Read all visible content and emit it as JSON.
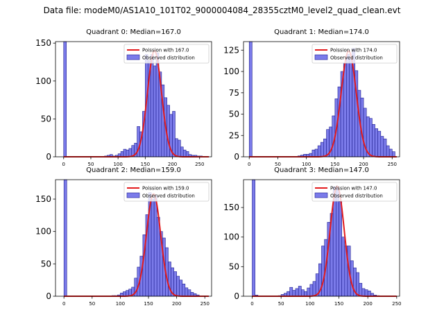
{
  "suptitle": "Data file: modeM0/AS1A10_101T02_9000004084_28355cztM0_level2_quad_clean.evt",
  "colors": {
    "bar_fill": "#7b7bea",
    "bar_edge": "#1f1f8f",
    "curve": "#e31a1c"
  },
  "chart_data": [
    {
      "type": "bar",
      "title": "Quadrant 0: Median=167.0",
      "xlim": [
        -15,
        272
      ],
      "ylim": [
        0,
        152
      ],
      "xticks": [
        0,
        50,
        100,
        150,
        200,
        250
      ],
      "yticks": [
        0,
        50,
        100,
        150
      ],
      "legend": [
        "Poission with 167.0",
        "Observed distribution"
      ],
      "median": 167,
      "bin_width": 5,
      "bins": [
        [
          0,
          152
        ],
        [
          5,
          0
        ],
        [
          10,
          0
        ],
        [
          15,
          0
        ],
        [
          20,
          0
        ],
        [
          25,
          0
        ],
        [
          30,
          0
        ],
        [
          35,
          0
        ],
        [
          40,
          0
        ],
        [
          45,
          0
        ],
        [
          50,
          0
        ],
        [
          55,
          0
        ],
        [
          60,
          0
        ],
        [
          65,
          0
        ],
        [
          70,
          0
        ],
        [
          75,
          1
        ],
        [
          80,
          2
        ],
        [
          85,
          3
        ],
        [
          90,
          1
        ],
        [
          95,
          2
        ],
        [
          100,
          4
        ],
        [
          105,
          7
        ],
        [
          110,
          10
        ],
        [
          115,
          9
        ],
        [
          120,
          11
        ],
        [
          125,
          15
        ],
        [
          130,
          18
        ],
        [
          135,
          40
        ],
        [
          140,
          33
        ],
        [
          145,
          60
        ],
        [
          150,
          135
        ],
        [
          155,
          127
        ],
        [
          160,
          135
        ],
        [
          165,
          120
        ],
        [
          170,
          137
        ],
        [
          175,
          112
        ],
        [
          180,
          95
        ],
        [
          185,
          78
        ],
        [
          190,
          68
        ],
        [
          195,
          56
        ],
        [
          200,
          60
        ],
        [
          205,
          24
        ],
        [
          210,
          22
        ],
        [
          215,
          13
        ],
        [
          220,
          9
        ],
        [
          225,
          7
        ],
        [
          230,
          3
        ],
        [
          235,
          2
        ],
        [
          240,
          2
        ],
        [
          245,
          1
        ],
        [
          250,
          1
        ]
      ],
      "curve_peak": 140
    },
    {
      "type": "bar",
      "title": "Quadrant 1: Median=174.0",
      "xlim": [
        -10,
        263
      ],
      "ylim": [
        0,
        135
      ],
      "xticks": [
        0,
        50,
        100,
        150,
        200,
        250
      ],
      "yticks": [
        0,
        25,
        50,
        75,
        100,
        125
      ],
      "legend": [
        "Poission with 174.0",
        "Observed distribution"
      ],
      "median": 174,
      "bin_width": 5,
      "bins": [
        [
          0,
          135
        ],
        [
          5,
          0
        ],
        [
          10,
          0
        ],
        [
          15,
          0
        ],
        [
          20,
          0
        ],
        [
          25,
          0
        ],
        [
          30,
          0
        ],
        [
          35,
          0
        ],
        [
          40,
          0
        ],
        [
          45,
          0
        ],
        [
          50,
          0
        ],
        [
          55,
          0
        ],
        [
          60,
          0
        ],
        [
          65,
          0
        ],
        [
          70,
          0
        ],
        [
          75,
          0
        ],
        [
          80,
          0
        ],
        [
          85,
          1
        ],
        [
          90,
          2
        ],
        [
          95,
          3
        ],
        [
          100,
          3
        ],
        [
          105,
          4
        ],
        [
          110,
          8
        ],
        [
          115,
          9
        ],
        [
          120,
          13
        ],
        [
          125,
          17
        ],
        [
          130,
          21
        ],
        [
          135,
          32
        ],
        [
          140,
          35
        ],
        [
          145,
          48
        ],
        [
          150,
          68
        ],
        [
          155,
          82
        ],
        [
          160,
          100
        ],
        [
          165,
          110
        ],
        [
          170,
          120
        ],
        [
          175,
          115
        ],
        [
          180,
          127
        ],
        [
          185,
          101
        ],
        [
          190,
          78
        ],
        [
          195,
          69
        ],
        [
          200,
          57
        ],
        [
          205,
          47
        ],
        [
          210,
          45
        ],
        [
          215,
          38
        ],
        [
          220,
          33
        ],
        [
          225,
          30
        ],
        [
          230,
          24
        ],
        [
          235,
          21
        ],
        [
          240,
          13
        ],
        [
          245,
          9
        ],
        [
          250,
          6
        ]
      ],
      "curve_peak": 124
    },
    {
      "type": "bar",
      "title": "Quadrant 2: Median=159.0",
      "xlim": [
        -15,
        262
      ],
      "ylim": [
        0,
        180
      ],
      "xticks": [
        0,
        50,
        100,
        150,
        200,
        250
      ],
      "yticks": [
        0,
        50,
        100,
        150
      ],
      "legend": [
        "Poission with 159.0",
        "Observed distribution"
      ],
      "median": 159,
      "bin_width": 5,
      "bins": [
        [
          0,
          180
        ],
        [
          5,
          0
        ],
        [
          10,
          0
        ],
        [
          15,
          0
        ],
        [
          20,
          0
        ],
        [
          25,
          0
        ],
        [
          30,
          0
        ],
        [
          35,
          0
        ],
        [
          40,
          0
        ],
        [
          45,
          0
        ],
        [
          50,
          0
        ],
        [
          55,
          0
        ],
        [
          60,
          0
        ],
        [
          65,
          0
        ],
        [
          70,
          0
        ],
        [
          75,
          0
        ],
        [
          80,
          0
        ],
        [
          85,
          1
        ],
        [
          90,
          1
        ],
        [
          95,
          2
        ],
        [
          100,
          5
        ],
        [
          105,
          7
        ],
        [
          110,
          9
        ],
        [
          115,
          11
        ],
        [
          120,
          14
        ],
        [
          125,
          28
        ],
        [
          130,
          45
        ],
        [
          135,
          62
        ],
        [
          140,
          95
        ],
        [
          145,
          126
        ],
        [
          150,
          160
        ],
        [
          155,
          150
        ],
        [
          160,
          155
        ],
        [
          165,
          122
        ],
        [
          170,
          100
        ],
        [
          175,
          90
        ],
        [
          180,
          75
        ],
        [
          185,
          53
        ],
        [
          190,
          44
        ],
        [
          195,
          38
        ],
        [
          200,
          31
        ],
        [
          205,
          25
        ],
        [
          210,
          19
        ],
        [
          215,
          13
        ],
        [
          220,
          10
        ],
        [
          225,
          6
        ],
        [
          230,
          4
        ],
        [
          235,
          2
        ]
      ],
      "curve_peak": 158
    },
    {
      "type": "bar",
      "title": "Quadrant 3: Median=147.0",
      "xlim": [
        -15,
        255
      ],
      "ylim": [
        0,
        197
      ],
      "xticks": [
        0,
        50,
        100,
        150,
        200,
        250
      ],
      "yticks": [
        0,
        50,
        100,
        150
      ],
      "legend": [
        "Poission with 147.0",
        "Observed distribution"
      ],
      "median": 147,
      "bin_width": 5,
      "bins": [
        [
          0,
          197
        ],
        [
          5,
          2
        ],
        [
          10,
          0
        ],
        [
          15,
          0
        ],
        [
          20,
          0
        ],
        [
          25,
          0
        ],
        [
          30,
          0
        ],
        [
          35,
          0
        ],
        [
          40,
          0
        ],
        [
          45,
          1
        ],
        [
          50,
          3
        ],
        [
          55,
          5
        ],
        [
          60,
          8
        ],
        [
          65,
          15
        ],
        [
          70,
          10
        ],
        [
          75,
          13
        ],
        [
          80,
          17
        ],
        [
          85,
          11
        ],
        [
          90,
          8
        ],
        [
          95,
          14
        ],
        [
          100,
          20
        ],
        [
          105,
          25
        ],
        [
          110,
          38
        ],
        [
          115,
          55
        ],
        [
          120,
          85
        ],
        [
          125,
          96
        ],
        [
          130,
          125
        ],
        [
          135,
          140
        ],
        [
          140,
          185
        ],
        [
          145,
          185
        ],
        [
          150,
          160
        ],
        [
          155,
          100
        ],
        [
          160,
          85
        ],
        [
          165,
          85
        ],
        [
          170,
          60
        ],
        [
          175,
          48
        ],
        [
          180,
          40
        ],
        [
          185,
          22
        ],
        [
          190,
          13
        ],
        [
          195,
          11
        ],
        [
          200,
          9
        ],
        [
          205,
          5
        ],
        [
          210,
          2
        ],
        [
          215,
          1
        ]
      ],
      "curve_peak": 186
    }
  ]
}
